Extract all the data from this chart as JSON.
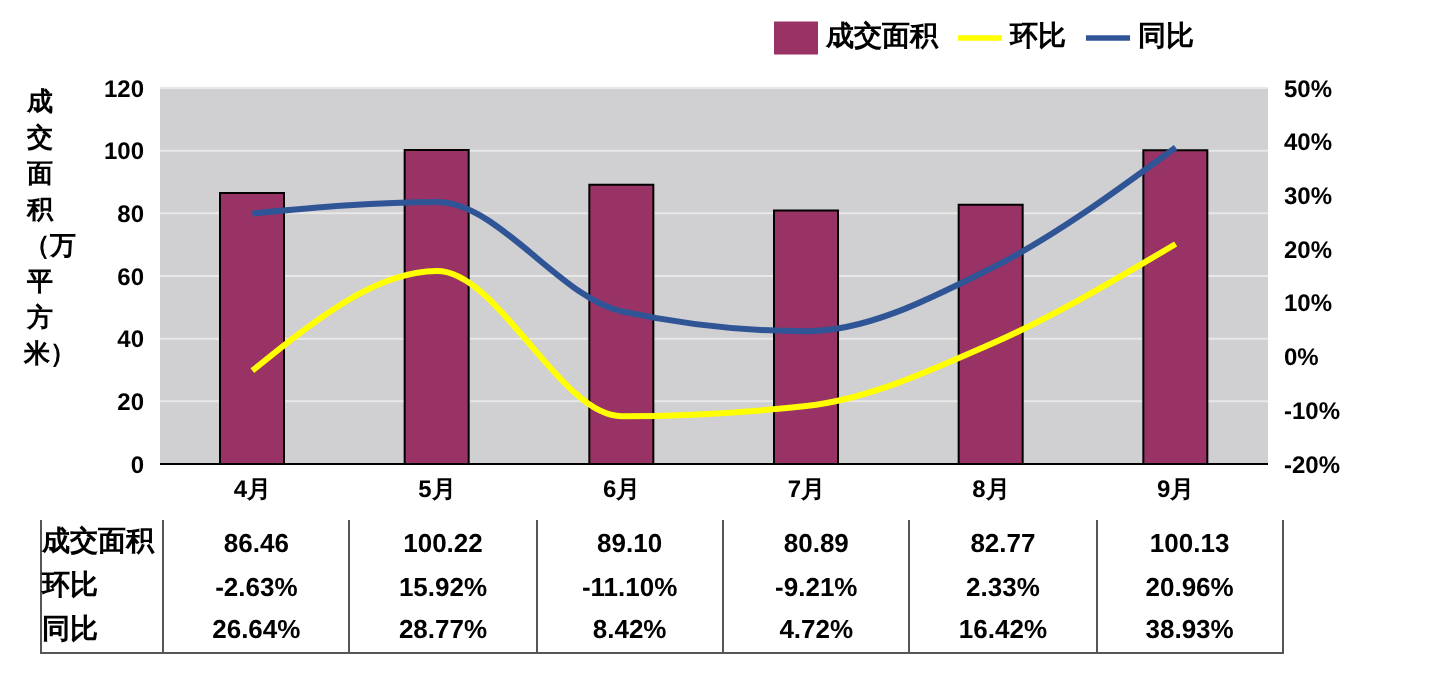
{
  "chart_data": {
    "type": "bar",
    "ylabel": "成交面积（万平方米）",
    "categories": [
      "4月",
      "5月",
      "6月",
      "7月",
      "8月",
      "9月"
    ],
    "series": [
      {
        "name": "成交面积",
        "color": "#993366",
        "values": [
          86.46,
          100.22,
          89.1,
          80.89,
          82.77,
          100.13
        ],
        "value_labels": [
          "86.46",
          "100.22",
          "89.10",
          "80.89",
          "82.77",
          "100.13"
        ]
      },
      {
        "name": "环比",
        "type": "line",
        "axis": "y2",
        "color": "#ffff00",
        "values": [
          -2.63,
          15.92,
          -11.1,
          -9.21,
          2.33,
          20.96
        ],
        "value_labels": [
          "-2.63%",
          "15.92%",
          "-11.10%",
          "-9.21%",
          "2.33%",
          "20.96%"
        ]
      },
      {
        "name": "同比",
        "type": "line",
        "axis": "y2",
        "color": "#2f5597",
        "values": [
          26.64,
          28.77,
          8.42,
          4.72,
          16.42,
          38.93
        ],
        "value_labels": [
          "26.64%",
          "28.77%",
          "8.42%",
          "4.72%",
          "16.42%",
          "38.93%"
        ]
      }
    ],
    "ylim": [
      0,
      120
    ],
    "yticks": [
      0,
      20,
      40,
      60,
      80,
      100,
      120
    ],
    "y2lim": [
      -20,
      50
    ],
    "y2ticks": [
      {
        "value": -20,
        "label": "-20%"
      },
      {
        "value": -10,
        "label": "-10%"
      },
      {
        "value": 0,
        "label": "0%"
      },
      {
        "value": 10,
        "label": "10%"
      },
      {
        "value": 20,
        "label": "20%"
      },
      {
        "value": 30,
        "label": "30%"
      },
      {
        "value": 40,
        "label": "40%"
      },
      {
        "value": 50,
        "label": "50%"
      }
    ],
    "grid": "y",
    "legend": "top right",
    "marker": "none",
    "line_style": "solid"
  }
}
